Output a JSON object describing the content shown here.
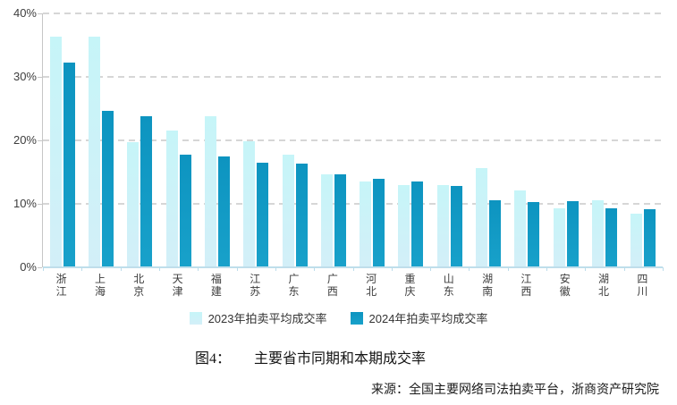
{
  "chart_data": {
    "type": "bar",
    "title": "主要省市同期和本期成交率",
    "caption_label": "图4：",
    "categories": [
      "浙江",
      "上海",
      "北京",
      "天津",
      "福建",
      "江苏",
      "广东",
      "广西",
      "河北",
      "重庆",
      "山东",
      "湖南",
      "江西",
      "安徽",
      "湖北",
      "四川"
    ],
    "series": [
      {
        "name": "2023年拍卖平均成交率",
        "color_top": "#c6f5f8",
        "color_bottom": "#d3eff8",
        "values": [
          36.4,
          36.4,
          19.7,
          21.5,
          23.8,
          19.9,
          17.7,
          14.6,
          13.5,
          13.0,
          12.9,
          15.6,
          12.1,
          9.3,
          10.6,
          8.4
        ]
      },
      {
        "name": "2024年拍卖平均成交率",
        "color_top": "#0d94c0",
        "color_bottom": "#18a1ca",
        "values": [
          32.3,
          24.6,
          23.8,
          17.7,
          17.4,
          16.5,
          16.3,
          14.7,
          14.0,
          13.5,
          12.8,
          10.5,
          10.3,
          10.4,
          9.3,
          9.1
        ]
      }
    ],
    "ylim": [
      0,
      40
    ],
    "yticks": [
      "0%",
      "10%",
      "20%",
      "30%",
      "40%"
    ],
    "grid": "horizontal-dashed",
    "legend_position": "bottom-center",
    "colors": {
      "gridline": "#d6d6d6",
      "y_axis": "#c6c6c6",
      "x_axis": "#bfdeeb",
      "tick_text": "#3d3d3d"
    }
  },
  "source_note": "来源：全国主要网络司法拍卖平台，浙商资产研究院"
}
